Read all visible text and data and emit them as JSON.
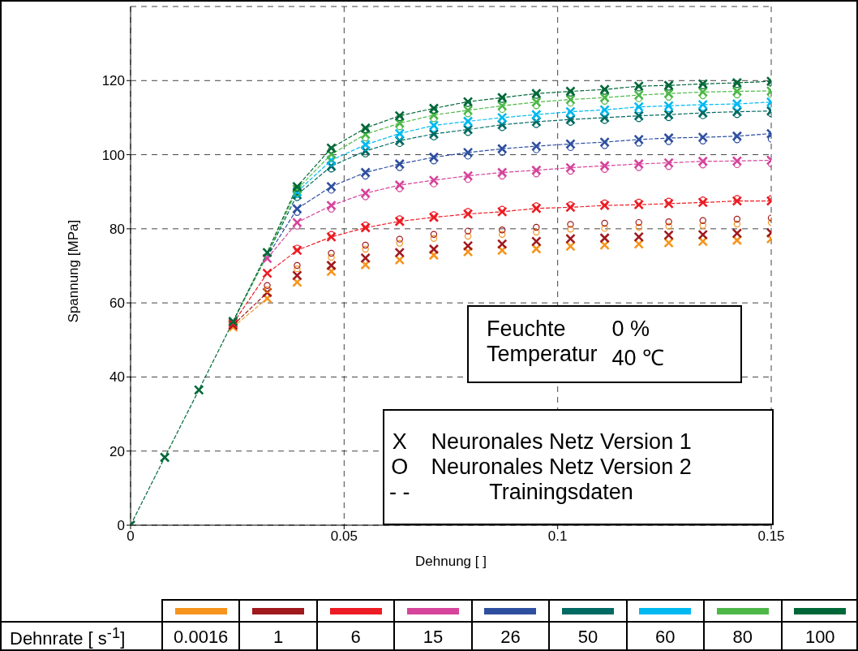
{
  "chart_data": {
    "type": "line",
    "xlabel": "Dehnung [ ]",
    "ylabel": "Spannung [MPa]",
    "legend_title": "Dehnrate [ s$^{-1}$]",
    "legend": "bottom",
    "grid": true,
    "xlim": [
      0,
      0.15
    ],
    "xticks": [
      0,
      0.05,
      0.1,
      0.15
    ],
    "ylim": [
      0,
      140
    ],
    "yticks": [
      0,
      20,
      40,
      60,
      80,
      100,
      120
    ],
    "annotations": [
      "Feuchte",
      "0 %",
      "Temperatur",
      "40 ℃",
      "X",
      "Neuronales Netz Version 1",
      "O",
      "Neuronales Netz Version 2",
      "- -",
      "Trainingsdaten"
    ],
    "x": [
      0,
      0.008,
      0.016,
      0.024,
      0.032,
      0.039,
      0.047,
      0.055,
      0.063,
      0.071,
      0.079,
      0.087,
      0.095,
      0.103,
      0.111,
      0.119,
      0.126,
      0.134,
      0.142,
      0.15
    ],
    "series": [
      {
        "name": "0.0016",
        "type": "line",
        "line_style": "dashed",
        "marker": "none",
        "color": "#f7941d",
        "values": [
          null,
          null,
          null,
          53.5,
          61.2,
          null,
          null,
          null,
          null,
          null,
          null,
          null,
          null,
          null,
          null,
          null,
          null,
          null,
          null,
          null
        ]
      },
      {
        "name": "1",
        "type": "line",
        "line_style": "dashed",
        "marker": "none",
        "color": "#a0191d",
        "values": [
          null,
          null,
          null,
          54,
          62.8,
          null,
          null,
          null,
          null,
          null,
          null,
          null,
          null,
          null,
          null,
          null,
          null,
          null,
          null,
          null
        ]
      },
      {
        "name": "6",
        "type": "line",
        "line_style": "dashed",
        "marker": "none",
        "color": "#ed1c24",
        "values": [
          null,
          null,
          null,
          54.5,
          68,
          74.2,
          77.8,
          80.3,
          82,
          83.1,
          84,
          84.6,
          85.5,
          85.8,
          86.3,
          86.5,
          86.8,
          87.1,
          87.5,
          87.5
        ]
      },
      {
        "name": "15",
        "type": "line",
        "line_style": "dashed",
        "marker": "none",
        "color": "#d6449b",
        "values": [
          null,
          null,
          null,
          null,
          72,
          81.7,
          86.3,
          89.6,
          91.8,
          93.1,
          94.3,
          95.2,
          95.8,
          96.5,
          97,
          97.5,
          97.8,
          98.2,
          98.3,
          98.5
        ]
      },
      {
        "name": "26",
        "type": "line",
        "line_style": "dashed",
        "marker": "none",
        "color": "#2e4fa0",
        "values": [
          null,
          null,
          null,
          null,
          72.5,
          85.4,
          91.4,
          95.2,
          97.5,
          99.3,
          100.6,
          101.6,
          102.3,
          102.9,
          103.4,
          104.1,
          104.5,
          104.7,
          105,
          105.7
        ]
      },
      {
        "name": "50",
        "type": "line",
        "line_style": "dashed",
        "marker": "none",
        "color": "#006a63",
        "values": [
          null,
          null,
          null,
          55,
          73,
          89.2,
          96.9,
          101,
          103.8,
          105.6,
          106.8,
          108.1,
          108.9,
          109.5,
          110,
          110.5,
          110.8,
          111.3,
          111.6,
          111.8
        ]
      },
      {
        "name": "60",
        "type": "line",
        "line_style": "dashed",
        "marker": "none",
        "color": "#00b9f1",
        "values": [
          null,
          null,
          null,
          null,
          null,
          90,
          98.5,
          102.7,
          105.7,
          107.9,
          109,
          110,
          110.8,
          111.6,
          112.1,
          112.9,
          113.2,
          113.5,
          113.7,
          114.2
        ]
      },
      {
        "name": "80",
        "type": "line",
        "line_style": "dashed",
        "marker": "none",
        "color": "#4db848",
        "values": [
          null,
          null,
          null,
          55,
          73,
          90.7,
          100.1,
          105.5,
          108.5,
          110.7,
          112,
          113.2,
          114.2,
          114.9,
          115.4,
          116.1,
          116.5,
          116.9,
          117.1,
          117.2
        ]
      },
      {
        "name": "100",
        "type": "line",
        "line_style": "dashed",
        "marker": "none",
        "color": "#006838",
        "values": [
          0,
          18.3,
          36.5,
          55,
          73.6,
          91.4,
          101.8,
          107.2,
          110.5,
          112.5,
          114.3,
          115.4,
          116.5,
          117.1,
          117.6,
          118.5,
          118.7,
          119.1,
          119.4,
          119.8
        ]
      },
      {
        "type": "scatter",
        "marker": "circle",
        "color": "#f7941d",
        "values": [
          null,
          null,
          null,
          null,
          63.6,
          69.2,
          72.3,
          74.5,
          76.1,
          77.4,
          78,
          78.5,
          79.1,
          79.9,
          80.1,
          80.4,
          80.7,
          80.9,
          81.3,
          81.7
        ]
      },
      {
        "type": "scatter",
        "marker": "circle",
        "color": "#a0191d",
        "values": [
          null,
          null,
          null,
          null,
          64.7,
          70.1,
          73.4,
          75.6,
          77.2,
          78.5,
          79.4,
          79.7,
          80.4,
          81.2,
          81.5,
          81.7,
          81.9,
          82.2,
          82.6,
          82.9
        ]
      },
      {
        "type": "scatter",
        "marker": "circle",
        "color": "#ed1c24",
        "values": [
          null,
          null,
          null,
          null,
          null,
          74.8,
          78.5,
          81,
          82.7,
          83.8,
          84.7,
          85.3,
          86.2,
          86.5,
          87,
          87.2,
          87.5,
          87.8,
          88.2,
          88.2
        ]
      },
      {
        "type": "scatter",
        "marker": "circle",
        "color": "#d6449b",
        "values": [
          null,
          null,
          null,
          null,
          null,
          80.7,
          85.3,
          88.6,
          90.8,
          92.1,
          93.3,
          94.2,
          94.8,
          95.5,
          96,
          96.5,
          96.8,
          97.2,
          97.3,
          97.5
        ]
      },
      {
        "type": "scatter",
        "marker": "circle",
        "color": "#2e4fa0",
        "values": [
          null,
          null,
          null,
          null,
          null,
          84.4,
          90.4,
          94.2,
          96.5,
          98.3,
          99.6,
          100.6,
          101.3,
          101.9,
          102.4,
          103.1,
          103.5,
          103.7,
          104,
          104.2
        ]
      },
      {
        "type": "scatter",
        "marker": "circle",
        "color": "#006a63",
        "values": [
          null,
          null,
          null,
          null,
          null,
          88.4,
          96.1,
          100.2,
          103,
          104.8,
          106,
          107.3,
          108.1,
          108.7,
          109.2,
          109.7,
          110,
          110.5,
          110.8,
          111
        ]
      },
      {
        "type": "scatter",
        "marker": "circle",
        "color": "#00b9f1",
        "values": [
          null,
          null,
          null,
          null,
          null,
          89.2,
          97.7,
          101.9,
          104.9,
          107.1,
          108.2,
          109.2,
          110,
          110.8,
          111.3,
          112.1,
          112.4,
          112.7,
          112.9,
          113.4
        ]
      },
      {
        "type": "scatter",
        "marker": "circle",
        "color": "#4db848",
        "values": [
          null,
          null,
          null,
          null,
          null,
          89.7,
          99.1,
          104.5,
          107.5,
          109.7,
          111,
          112.2,
          113.2,
          113.9,
          114.4,
          115.1,
          115.5,
          115.9,
          116.1,
          116.2
        ]
      },
      {
        "type": "scatter",
        "marker": "circle",
        "color": "#006838",
        "values": [
          null,
          null,
          null,
          null,
          null,
          90.9,
          101.3,
          106.7,
          110,
          112,
          113.8,
          114.9,
          116,
          116.6,
          117.1,
          118,
          118.2,
          118.6,
          118.9,
          119.3
        ]
      },
      {
        "type": "scatter",
        "marker": "cross",
        "color": "#f7941d",
        "values": [
          null,
          null,
          null,
          53.5,
          61.2,
          65.6,
          68.5,
          70.3,
          71.6,
          72.9,
          73.8,
          74.2,
          74.6,
          75.3,
          75.6,
          75.9,
          76.2,
          76.6,
          76.9,
          77.3
        ]
      },
      {
        "type": "scatter",
        "marker": "cross",
        "color": "#a0191d",
        "values": [
          null,
          null,
          null,
          54,
          62.8,
          67.4,
          70.1,
          72.1,
          73.6,
          74.5,
          75.4,
          75.9,
          76.6,
          77.3,
          77.5,
          77.8,
          78.3,
          78.4,
          78.8,
          78.9
        ]
      },
      {
        "type": "scatter",
        "marker": "cross",
        "color": "#ed1c24",
        "values": [
          null,
          null,
          null,
          54.5,
          68,
          74.2,
          77.8,
          80.3,
          82,
          83.1,
          84,
          84.6,
          85.5,
          85.8,
          86.3,
          86.5,
          86.8,
          87.1,
          87.5,
          87.5
        ]
      },
      {
        "type": "scatter",
        "marker": "cross",
        "color": "#d6449b",
        "values": [
          null,
          null,
          null,
          null,
          72,
          81.7,
          86.3,
          89.6,
          91.8,
          93.1,
          94.3,
          95.2,
          95.8,
          96.5,
          97,
          97.5,
          97.8,
          98.2,
          98.3,
          98.5
        ]
      },
      {
        "type": "scatter",
        "marker": "cross",
        "color": "#2e4fa0",
        "values": [
          null,
          null,
          null,
          null,
          null,
          85.4,
          91.4,
          95.2,
          97.5,
          99.3,
          100.6,
          101.6,
          102.3,
          102.9,
          103.4,
          104.1,
          104.5,
          104.7,
          105,
          105.7
        ]
      },
      {
        "type": "scatter",
        "marker": "cross",
        "color": "#006a63",
        "values": [
          null,
          null,
          null,
          null,
          null,
          89.2,
          96.9,
          101,
          103.8,
          105.6,
          106.8,
          108.1,
          108.9,
          109.5,
          110,
          110.5,
          110.8,
          111.3,
          111.6,
          111.8
        ]
      },
      {
        "type": "scatter",
        "marker": "cross",
        "color": "#00b9f1",
        "values": [
          null,
          null,
          null,
          null,
          null,
          90,
          98.5,
          102.7,
          105.7,
          107.9,
          109,
          110,
          110.8,
          111.6,
          112.1,
          112.9,
          113.2,
          113.5,
          113.7,
          114.2
        ]
      },
      {
        "type": "scatter",
        "marker": "cross",
        "color": "#4db848",
        "values": [
          null,
          null,
          null,
          null,
          null,
          90.7,
          100.1,
          105.5,
          108.5,
          110.7,
          112,
          113.2,
          114.2,
          114.9,
          115.4,
          116.1,
          116.5,
          116.9,
          117.1,
          117.2
        ]
      },
      {
        "type": "scatter",
        "marker": "cross",
        "color": "#006838",
        "values": [
          0,
          18.3,
          36.5,
          55,
          73.6,
          91.4,
          101.8,
          107.2,
          110.5,
          112.5,
          114.3,
          115.4,
          116.5,
          117.1,
          117.6,
          118.5,
          118.7,
          119.1,
          119.4,
          119.8
        ]
      }
    ]
  }
}
